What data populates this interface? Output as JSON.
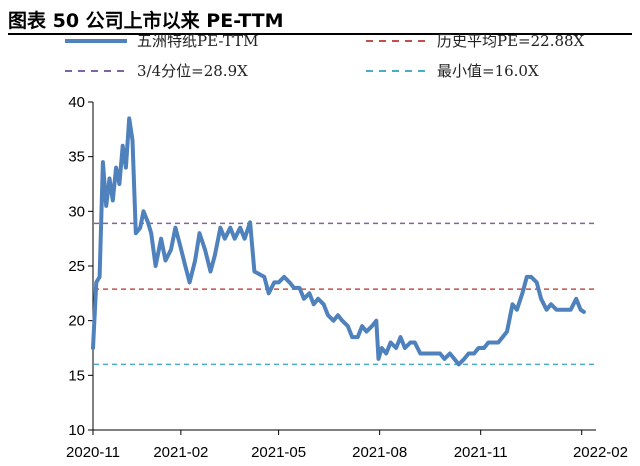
{
  "header": {
    "title": "图表 50 公司上市以来 PE-TTM"
  },
  "chart_data": {
    "type": "line",
    "title": "图表 50 公司上市以来 PE-TTM",
    "xlabel": "",
    "ylabel": "",
    "ylim": [
      10,
      40
    ],
    "yticks": [
      "10",
      "15",
      "20",
      "25",
      "30",
      "35",
      "40"
    ],
    "xlim": [
      "2020-11-13",
      "2022-02-14"
    ],
    "xticks": [
      {
        "label": "2020-11",
        "date": "2020-11-01"
      },
      {
        "label": "2021-02",
        "date": "2021-02-01"
      },
      {
        "label": "2021-05",
        "date": "2021-05-01"
      },
      {
        "label": "2021-08",
        "date": "2021-08-01"
      },
      {
        "label": "2021-11",
        "date": "2021-11-01"
      },
      {
        "label": "2022-02",
        "date": "2022-02-01"
      }
    ],
    "grid": false,
    "legend_position": "top",
    "series": [
      {
        "name": "五洲特纸PE-TTM",
        "style": "solid",
        "color": "#4f81bd",
        "points": [
          [
            "2020-11-13",
            17.5
          ],
          [
            "2020-11-16",
            23.5
          ],
          [
            "2020-11-19",
            24.0
          ],
          [
            "2020-11-22",
            34.5
          ],
          [
            "2020-11-25",
            30.5
          ],
          [
            "2020-11-28",
            33.0
          ],
          [
            "2020-12-01",
            31.0
          ],
          [
            "2020-12-04",
            34.0
          ],
          [
            "2020-12-07",
            32.5
          ],
          [
            "2020-12-10",
            36.0
          ],
          [
            "2020-12-13",
            34.0
          ],
          [
            "2020-12-16",
            38.5
          ],
          [
            "2020-12-19",
            36.5
          ],
          [
            "2020-12-22",
            28.0
          ],
          [
            "2020-12-26",
            28.5
          ],
          [
            "2020-12-29",
            30.0
          ],
          [
            "2021-01-02",
            29.0
          ],
          [
            "2021-01-05",
            28.0
          ],
          [
            "2021-01-09",
            25.0
          ],
          [
            "2021-01-14",
            27.5
          ],
          [
            "2021-01-18",
            25.5
          ],
          [
            "2021-01-23",
            26.5
          ],
          [
            "2021-01-27",
            28.5
          ],
          [
            "2021-01-31",
            27.0
          ],
          [
            "2021-02-05",
            25.0
          ],
          [
            "2021-02-09",
            23.5
          ],
          [
            "2021-02-14",
            25.5
          ],
          [
            "2021-02-18",
            28.0
          ],
          [
            "2021-02-23",
            26.5
          ],
          [
            "2021-02-28",
            24.5
          ],
          [
            "2021-03-04",
            26.0
          ],
          [
            "2021-03-09",
            28.5
          ],
          [
            "2021-03-13",
            27.5
          ],
          [
            "2021-03-18",
            28.5
          ],
          [
            "2021-03-22",
            27.5
          ],
          [
            "2021-03-27",
            28.5
          ],
          [
            "2021-03-31",
            27.5
          ],
          [
            "2021-04-05",
            29.0
          ],
          [
            "2021-04-09",
            24.5
          ],
          [
            "2021-04-18",
            24.0
          ],
          [
            "2021-04-22",
            22.5
          ],
          [
            "2021-04-27",
            23.5
          ],
          [
            "2021-05-01",
            23.5
          ],
          [
            "2021-05-06",
            24.0
          ],
          [
            "2021-05-11",
            23.5
          ],
          [
            "2021-05-15",
            23.0
          ],
          [
            "2021-05-20",
            23.0
          ],
          [
            "2021-05-24",
            22.0
          ],
          [
            "2021-05-29",
            22.5
          ],
          [
            "2021-06-02",
            21.5
          ],
          [
            "2021-06-06",
            22.0
          ],
          [
            "2021-06-11",
            21.5
          ],
          [
            "2021-06-15",
            20.5
          ],
          [
            "2021-06-20",
            20.0
          ],
          [
            "2021-06-24",
            20.5
          ],
          [
            "2021-06-28",
            20.0
          ],
          [
            "2021-07-03",
            19.5
          ],
          [
            "2021-07-07",
            18.5
          ],
          [
            "2021-07-12",
            18.5
          ],
          [
            "2021-07-16",
            19.5
          ],
          [
            "2021-07-20",
            19.0
          ],
          [
            "2021-07-25",
            19.5
          ],
          [
            "2021-07-29",
            20.0
          ],
          [
            "2021-07-31",
            16.5
          ],
          [
            "2021-08-03",
            17.5
          ],
          [
            "2021-08-07",
            17.0
          ],
          [
            "2021-08-11",
            18.0
          ],
          [
            "2021-08-16",
            17.5
          ],
          [
            "2021-08-20",
            18.5
          ],
          [
            "2021-08-24",
            17.5
          ],
          [
            "2021-08-29",
            18.0
          ],
          [
            "2021-09-02",
            18.0
          ],
          [
            "2021-09-07",
            17.0
          ],
          [
            "2021-09-11",
            17.0
          ],
          [
            "2021-09-16",
            17.0
          ],
          [
            "2021-09-20",
            17.0
          ],
          [
            "2021-09-25",
            17.0
          ],
          [
            "2021-09-29",
            16.5
          ],
          [
            "2021-10-04",
            17.0
          ],
          [
            "2021-10-08",
            16.5
          ],
          [
            "2021-10-12",
            16.0
          ],
          [
            "2021-10-17",
            16.5
          ],
          [
            "2021-10-21",
            17.0
          ],
          [
            "2021-10-26",
            17.0
          ],
          [
            "2021-10-30",
            17.5
          ],
          [
            "2021-11-04",
            17.5
          ],
          [
            "2021-11-08",
            18.0
          ],
          [
            "2021-11-12",
            18.0
          ],
          [
            "2021-11-17",
            18.0
          ],
          [
            "2021-11-21",
            18.5
          ],
          [
            "2021-11-25",
            19.0
          ],
          [
            "2021-11-30",
            21.5
          ],
          [
            "2021-12-04",
            21.0
          ],
          [
            "2021-12-09",
            22.5
          ],
          [
            "2021-12-13",
            24.0
          ],
          [
            "2021-12-17",
            24.0
          ],
          [
            "2021-12-22",
            23.5
          ],
          [
            "2021-12-26",
            22.0
          ],
          [
            "2021-12-31",
            21.0
          ],
          [
            "2022-01-04",
            21.5
          ],
          [
            "2022-01-09",
            21.0
          ],
          [
            "2022-01-13",
            21.0
          ],
          [
            "2022-01-18",
            21.0
          ],
          [
            "2022-01-22",
            21.0
          ],
          [
            "2022-01-27",
            22.0
          ],
          [
            "2022-01-31",
            21.0
          ],
          [
            "2022-02-03",
            20.8
          ]
        ]
      },
      {
        "name": "历史平均PE=22.88X",
        "style": "dashed",
        "color": "#c0504d",
        "value": 22.88
      },
      {
        "name": "3/4分位=28.9X",
        "style": "dashed",
        "color": "#8064a2",
        "value": 28.9
      },
      {
        "name": "最小值=16.0X",
        "style": "dashed",
        "color": "#4bacc6",
        "value": 16.0
      }
    ]
  }
}
